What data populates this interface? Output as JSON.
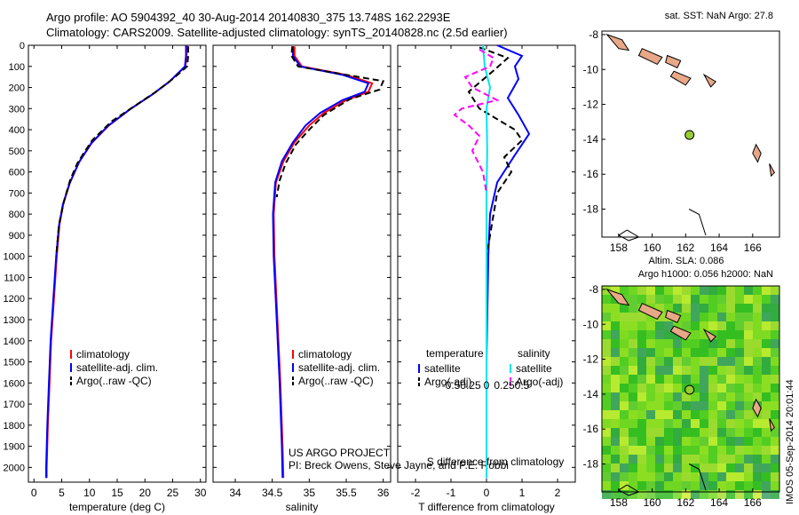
{
  "header": {
    "line1": "Argo profile: AO 5904392_40 30-Aug-2014 20140830_375 13.748S 162.2293E",
    "line2": "Climatology: CARS2009. Satellite-adjusted climatology: synTS_20140828.nc (2.5d earlier)"
  },
  "stamp": "IMOS 05-Sep-2014 20:01:44",
  "colors": {
    "climatology": "#ff0000",
    "satellite": "#0000ff",
    "argo": "#000000",
    "sal_satellite": "#00e5ee",
    "sal_argo": "#ff00ff",
    "land": "#e8a888",
    "float": "#99cc33"
  },
  "chart_data": [
    {
      "type": "line",
      "id": "temperature",
      "xlabel": "temperature (deg C)",
      "xlim": [
        -1,
        31
      ],
      "xticks": [
        0,
        5,
        10,
        15,
        20,
        25,
        30
      ],
      "ylim": [
        2070,
        0
      ],
      "yticks": [
        0,
        100,
        200,
        300,
        400,
        500,
        600,
        700,
        800,
        900,
        1000,
        1100,
        1200,
        1300,
        1400,
        1500,
        1600,
        1700,
        1800,
        1900,
        2000
      ],
      "legend": [
        "climatology",
        "satellite-adj. clim.",
        "Argo(..raw -QC)"
      ],
      "legend_position": "lower-left",
      "series": [
        {
          "name": "climatology",
          "style": "solid",
          "color": "#ff0000",
          "points": [
            [
              27.6,
              0
            ],
            [
              27.5,
              50
            ],
            [
              27.3,
              100
            ],
            [
              24.5,
              170
            ],
            [
              21.5,
              230
            ],
            [
              17.5,
              300
            ],
            [
              13.5,
              380
            ],
            [
              10.5,
              460
            ],
            [
              8.2,
              550
            ],
            [
              6.5,
              650
            ],
            [
              5.3,
              750
            ],
            [
              4.6,
              850
            ],
            [
              4.1,
              1000
            ],
            [
              3.6,
              1200
            ],
            [
              3.1,
              1400
            ],
            [
              2.8,
              1600
            ],
            [
              2.5,
              1800
            ],
            [
              2.3,
              2000
            ],
            [
              2.3,
              2050
            ]
          ]
        },
        {
          "name": "satellite-adj. clim.",
          "style": "solid",
          "color": "#0000ff",
          "points": [
            [
              27.4,
              0
            ],
            [
              27.4,
              50
            ],
            [
              27.2,
              100
            ],
            [
              24.3,
              175
            ],
            [
              21.2,
              235
            ],
            [
              17.2,
              305
            ],
            [
              13.2,
              385
            ],
            [
              10.3,
              465
            ],
            [
              8.1,
              555
            ],
            [
              6.4,
              655
            ],
            [
              5.2,
              755
            ],
            [
              4.5,
              855
            ],
            [
              4.0,
              1000
            ],
            [
              3.5,
              1200
            ],
            [
              3.0,
              1400
            ],
            [
              2.7,
              1600
            ],
            [
              2.4,
              1800
            ],
            [
              2.2,
              2000
            ],
            [
              2.2,
              2050
            ]
          ]
        },
        {
          "name": "Argo(..raw -QC)",
          "style": "dashed",
          "color": "#000000",
          "points": [
            [
              27.8,
              5
            ],
            [
              27.8,
              50
            ],
            [
              27.6,
              100
            ],
            [
              25.0,
              160
            ],
            [
              22.0,
              220
            ],
            [
              18.0,
              290
            ],
            [
              14.0,
              360
            ],
            [
              10.5,
              450
            ],
            [
              9.0,
              510
            ],
            [
              7.8,
              560
            ],
            [
              6.5,
              640
            ],
            [
              5.4,
              740
            ],
            [
              4.5,
              850
            ],
            [
              4.0,
              1000
            ]
          ]
        }
      ]
    },
    {
      "type": "line",
      "id": "salinity",
      "xlabel": "salinity",
      "xlim": [
        33.7,
        36.1
      ],
      "xticks": [
        34,
        34.5,
        35,
        35.5,
        36
      ],
      "xticklabels": [
        "34",
        "34.5",
        "35",
        "35.5",
        "36"
      ],
      "ylim": [
        2070,
        0
      ],
      "legend": [
        "climatology",
        "satellite-adj. clim.",
        "Argo(..raw -QC)"
      ],
      "legend_position": "lower-right",
      "annotation": [
        "US ARGO PROJECT",
        "PI: Breck Owens, Steve Jayne, and P.E. Robbi"
      ],
      "series": [
        {
          "name": "climatology",
          "style": "solid",
          "color": "#ff0000",
          "points": [
            [
              34.8,
              5
            ],
            [
              34.8,
              50
            ],
            [
              34.9,
              100
            ],
            [
              35.5,
              140
            ],
            [
              35.85,
              180
            ],
            [
              35.8,
              220
            ],
            [
              35.5,
              260
            ],
            [
              35.2,
              320
            ],
            [
              35.0,
              380
            ],
            [
              34.8,
              460
            ],
            [
              34.65,
              550
            ],
            [
              34.55,
              650
            ],
            [
              34.52,
              800
            ],
            [
              34.53,
              1000
            ],
            [
              34.57,
              1300
            ],
            [
              34.61,
              1600
            ],
            [
              34.64,
              1900
            ],
            [
              34.65,
              2050
            ]
          ]
        },
        {
          "name": "satellite-adj. clim.",
          "style": "solid",
          "color": "#0000ff",
          "points": [
            [
              34.78,
              5
            ],
            [
              34.78,
              50
            ],
            [
              34.88,
              100
            ],
            [
              35.45,
              140
            ],
            [
              35.8,
              180
            ],
            [
              35.75,
              220
            ],
            [
              35.45,
              260
            ],
            [
              35.15,
              320
            ],
            [
              34.95,
              380
            ],
            [
              34.78,
              460
            ],
            [
              34.63,
              550
            ],
            [
              34.54,
              650
            ],
            [
              34.51,
              800
            ],
            [
              34.52,
              1000
            ],
            [
              34.56,
              1300
            ],
            [
              34.6,
              1600
            ],
            [
              34.63,
              1900
            ],
            [
              34.64,
              2050
            ]
          ]
        },
        {
          "name": "Argo(..raw -QC)",
          "style": "dashed",
          "color": "#000000",
          "points": [
            [
              34.77,
              5
            ],
            [
              34.76,
              50
            ],
            [
              34.85,
              100
            ],
            [
              35.5,
              140
            ],
            [
              36.0,
              170
            ],
            [
              35.95,
              210
            ],
            [
              35.55,
              255
            ],
            [
              35.2,
              330
            ],
            [
              35.0,
              400
            ],
            [
              34.82,
              470
            ],
            [
              34.68,
              560
            ],
            [
              34.6,
              640
            ],
            [
              34.56,
              720
            ]
          ]
        }
      ]
    },
    {
      "type": "line",
      "id": "difference",
      "xlabel": "T difference from climatology",
      "xlabel2": "S difference from climatology",
      "xlim": [
        -2.5,
        2.5
      ],
      "xticks": [
        -2,
        -1,
        0,
        1,
        2
      ],
      "xticks2": [
        "-0.5",
        "-0.25",
        "0",
        "0.25",
        "0.5"
      ],
      "ylim": [
        2070,
        0
      ],
      "legend_titles": [
        "temperature",
        "salinity"
      ],
      "legend": [
        "satellite",
        "Argo(-adj)",
        "satellite",
        "Argo(-adj)"
      ],
      "legend_position": "lower",
      "series": [
        {
          "name": "temperature satellite",
          "style": "solid",
          "color": "#0000ff",
          "points": [
            [
              0.3,
              0
            ],
            [
              1.0,
              50
            ],
            [
              0.8,
              100
            ],
            [
              0.9,
              160
            ],
            [
              0.6,
              250
            ],
            [
              0.9,
              330
            ],
            [
              1.2,
              420
            ],
            [
              0.8,
              520
            ],
            [
              0.3,
              650
            ],
            [
              0.1,
              800
            ],
            [
              0.05,
              1000
            ],
            [
              0.0,
              1500
            ],
            [
              0.0,
              2050
            ]
          ]
        },
        {
          "name": "temperature Argo(-adj)",
          "style": "dashed",
          "color": "#000000",
          "points": [
            [
              -0.2,
              10
            ],
            [
              0.6,
              60
            ],
            [
              0.2,
              120
            ],
            [
              -0.5,
              220
            ],
            [
              -0.2,
              300
            ],
            [
              0.8,
              400
            ],
            [
              1.0,
              450
            ],
            [
              0.5,
              530
            ],
            [
              0.7,
              600
            ],
            [
              0.3,
              700
            ],
            [
              0.2,
              800
            ],
            [
              0.0,
              1000
            ]
          ]
        },
        {
          "name": "salinity satellite",
          "style": "solid",
          "color": "#00e5ee",
          "points": [
            [
              -0.1,
              0
            ],
            [
              -0.05,
              100
            ],
            [
              0.1,
              200
            ],
            [
              0.0,
              300
            ],
            [
              0.02,
              500
            ],
            [
              0.0,
              700
            ],
            [
              0.0,
              1000
            ],
            [
              0.0,
              1500
            ],
            [
              0.0,
              2050
            ]
          ]
        },
        {
          "name": "salinity Argo(-adj)",
          "style": "dashed",
          "color": "#ff00ff",
          "points": [
            [
              -0.2,
              20
            ],
            [
              0.2,
              60
            ],
            [
              0.1,
              100
            ],
            [
              -0.6,
              150
            ],
            [
              -0.4,
              200
            ],
            [
              0.3,
              260
            ],
            [
              -0.7,
              300
            ],
            [
              -0.9,
              330
            ],
            [
              -0.5,
              380
            ],
            [
              -0.2,
              430
            ],
            [
              -0.4,
              500
            ],
            [
              -0.1,
              600
            ],
            [
              0.0,
              700
            ]
          ]
        }
      ]
    },
    {
      "type": "scatter",
      "id": "sst_map",
      "title": "sat. SST: NaN Argo: 27.8",
      "xlim": [
        157,
        167.6
      ],
      "ylim": [
        -19.6,
        -7.8
      ],
      "xticks": [
        158,
        160,
        162,
        164,
        166
      ],
      "yticks": [
        -8,
        -10,
        -12,
        -14,
        -16,
        -18
      ],
      "float_position": [
        162.23,
        -13.75
      ]
    },
    {
      "type": "heatmap",
      "id": "sla_map",
      "title": "Altim. SLA: 0.086",
      "subtitle": "Argo h1000: 0.056 h2000: NaN",
      "xlim": [
        157,
        167.6
      ],
      "ylim": [
        -19.6,
        -7.8
      ],
      "xticks": [
        158,
        160,
        162,
        164,
        166
      ],
      "yticks": [
        -8,
        -10,
        -12,
        -14,
        -16,
        -18
      ],
      "float_position": [
        162.23,
        -13.75
      ]
    }
  ]
}
